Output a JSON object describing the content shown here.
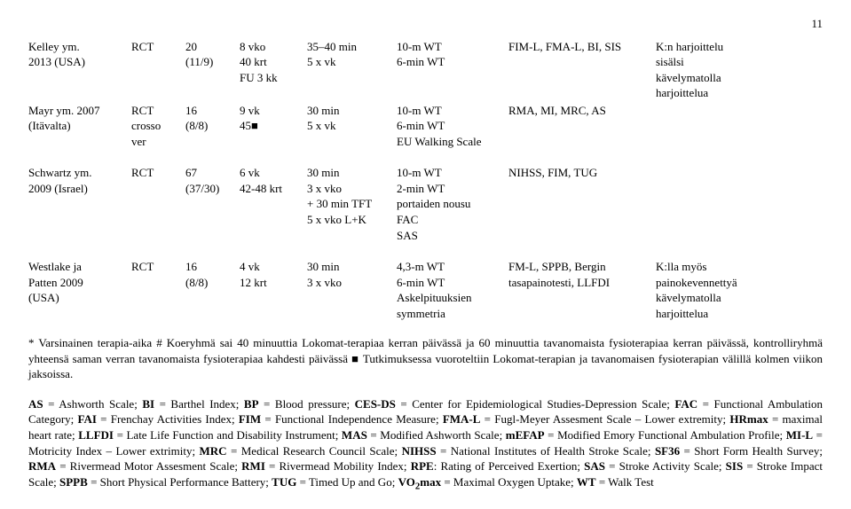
{
  "page_number": "11",
  "table": {
    "rows": [
      {
        "c0": "Kelley ym.\n2013 (USA)",
        "c1": "RCT",
        "c2": "20\n(11/9)",
        "c3": "8 vko\n40 krt\nFU 3 kk",
        "c4": "35–40 min\n5 x vk",
        "c5": "10-m WT\n6-min WT",
        "c6": "FIM-L, FMA-L, BI, SIS",
        "c7": "K:n harjoittelu\nsisälsi\nkävelymatolla\nharjoittelua"
      },
      {
        "c0": "Mayr ym. 2007\n(Itävalta)",
        "c1": "RCT\ncrosso\nver",
        "c2": "16\n(8/8)",
        "c3": "9 vk\n45■",
        "c4": "30 min\n5 x vk",
        "c5": "10-m WT\n6-min WT\nEU Walking Scale",
        "c6": "RMA, MI, MRC, AS",
        "c7": ""
      },
      {
        "spacer": true
      },
      {
        "c0": "Schwartz ym.\n2009 (Israel)",
        "c1": "RCT",
        "c2": "67\n(37/30)",
        "c3": "6 vk\n42-48 krt",
        "c4": "30 min\n3 x vko\n+ 30 min TFT\n5 x vko L+K",
        "c5": "10-m WT\n2-min WT\nportaiden nousu\nFAC\nSAS",
        "c6": "NIHSS, FIM, TUG",
        "c7": ""
      },
      {
        "spacer": true
      },
      {
        "c0": "Westlake ja\nPatten 2009\n(USA)",
        "c1": "RCT",
        "c2": "16\n(8/8)",
        "c3": "4 vk\n12 krt",
        "c4": "30 min\n3 x vko",
        "c5": "4,3-m WT\n6-min WT\nAskelpituuksien\nsymmetria",
        "c6": "FM-L, SPPB, Bergin\ntasapainotesti, LLFDI",
        "c7": "K:lla myös\npainokevennettyä\nkävelymatolla\nharjoittelua"
      }
    ]
  },
  "footnote": "* Varsinainen terapia-aika  # Koeryhmä sai 40 minuuttia Lokomat-terapiaa kerran päivässä ja 60 minuuttia tavanomaista fysioterapiaa kerran päivässä, kontrolliryhmä yhteensä saman verran tavanomaista fysioterapiaa kahdesti päivässä ■ Tutkimuksessa vuoroteltiin Lokomat-terapian ja tavanomaisen fysioterapian välillä kolmen viikon jaksoissa.",
  "abbrev_parts": [
    {
      "b": "AS",
      "t": " = Ashworth Scale;  "
    },
    {
      "b": "BI",
      "t": " = Barthel Index; "
    },
    {
      "b": "BP",
      "t": " = Blood pressure; "
    },
    {
      "b": "CES-DS",
      "t": " = Center for Epidemiological Studies-Depression Scale; "
    },
    {
      "b": "FAC",
      "t": " =  Functional Ambulation Category; "
    },
    {
      "b": "FAI",
      "t": " = Frenchay Activities Index; "
    },
    {
      "b": "FIM",
      "t": " = Functional Independence Measure; "
    },
    {
      "b": "FMA-L",
      "t": " = Fugl-Meyer Assesment Scale – Lower extremity; "
    },
    {
      "b": "HRmax",
      "t": " = maximal heart rate;  "
    },
    {
      "b": "LLFDI",
      "t": " = Late Life Function and Disability Instrument; "
    },
    {
      "b": "MAS",
      "t": " = Modified Ashworth Scale; "
    },
    {
      "b": "mEFAP",
      "t": " = Modified Emory Functional Ambulation Profile; "
    },
    {
      "b": "MI-L",
      "t": " = Motricity Index – Lower extrimity; "
    },
    {
      "b": "MRC",
      "t": " = Medical Research Council Scale; "
    },
    {
      "b": "NIHSS",
      "t": " = National Institutes of Health Stroke Scale; "
    },
    {
      "b": "SF36",
      "t": " = Short Form Health Survey; "
    },
    {
      "b": "RMA",
      "t": " = Rivermead Motor Assesment Scale; "
    },
    {
      "b": "RMI",
      "t": " = Rivermead Mobility Index; "
    },
    {
      "b": "RPE",
      "t": ": Rating of Perceived Exertion; "
    },
    {
      "b": "SAS",
      "t": " = Stroke Activity Scale; "
    },
    {
      "b": "SIS",
      "t": " = Stroke Impact Scale; "
    },
    {
      "b": "SPPB",
      "t": " = Short Physical Performance Battery; "
    },
    {
      "b": "TUG",
      "t": " = Timed Up and Go; "
    },
    {
      "b": "VO",
      "sub": "2",
      "b2": "max",
      "t": " = Maximal Oxygen Uptake; "
    },
    {
      "b": "WT",
      "t": " = Walk Test"
    }
  ]
}
